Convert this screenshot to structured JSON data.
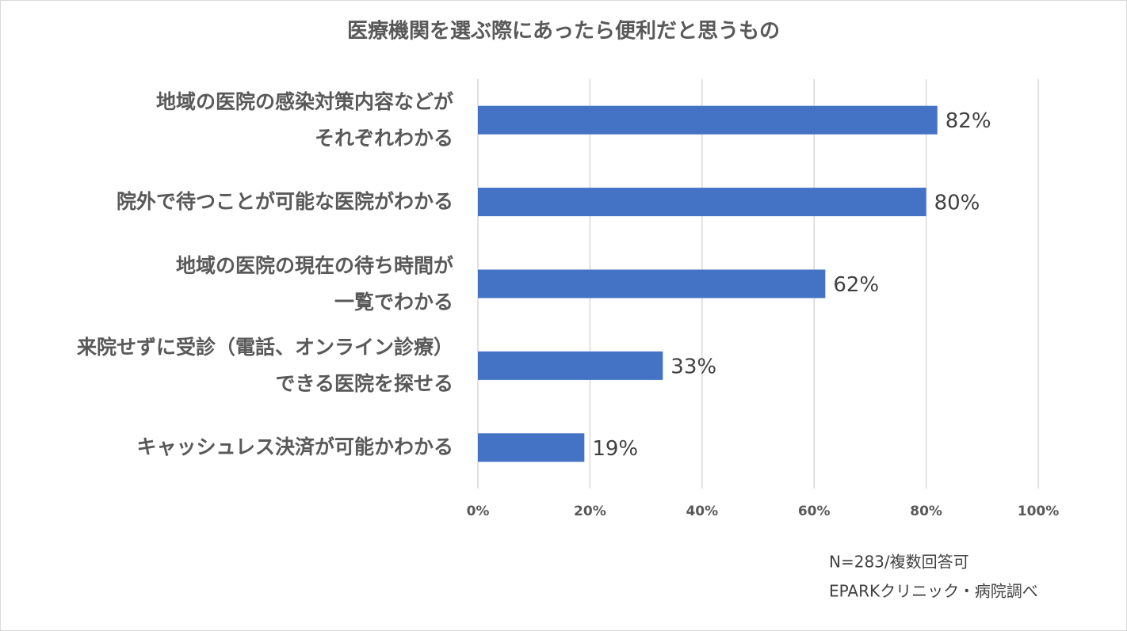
{
  "chart_data": {
    "type": "bar",
    "orientation": "horizontal",
    "title": "医療機関を選ぶ際にあったら便利だと思うもの",
    "categories": [
      "地域の医院の感染対策内容などが\nそれぞれわかる",
      "院外で待つことが可能な医院がわかる",
      "地域の医院の現在の待ち時間が\n一覧でわかる",
      "来院せずに受診（電話、オンライン診療）\nできる医院を探せる",
      "キャッシュレス決済が可能かわかる"
    ],
    "values": [
      82,
      80,
      62,
      33,
      19
    ],
    "value_labels": [
      "82%",
      "80%",
      "62%",
      "33%",
      "19%"
    ],
    "color": "#4472c4",
    "xlim": [
      0,
      100
    ],
    "xticks": [
      {
        "value": 0,
        "label": "0%"
      },
      {
        "value": 20,
        "label": "20%"
      },
      {
        "value": 40,
        "label": "40%"
      },
      {
        "value": 60,
        "label": "60%"
      },
      {
        "value": 80,
        "label": "80%"
      },
      {
        "value": 100,
        "label": "100%"
      }
    ],
    "grid": true,
    "notes": [
      "N=283/複数回答可",
      "EPARKクリニック・病院調べ"
    ]
  }
}
